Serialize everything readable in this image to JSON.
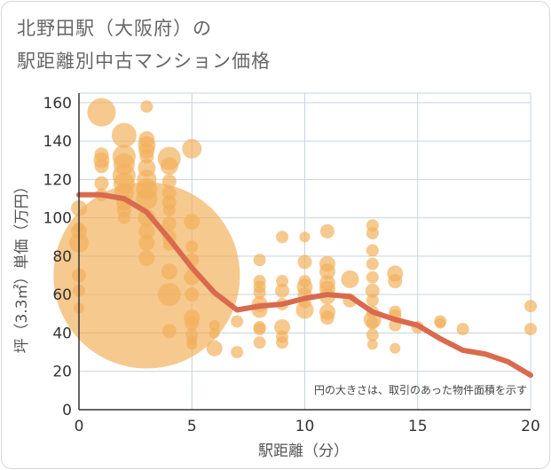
{
  "title_line1": "北野田駅（大阪府）の",
  "title_line2": "駅距離別中古マンション価格",
  "chart_data": {
    "type": "scatter",
    "xlabel": "駅距離（分）",
    "ylabel": "坪（3.3㎡）単価（万円）",
    "xlim": [
      0,
      20
    ],
    "ylim": [
      0,
      165
    ],
    "xticks": [
      0,
      5,
      10,
      15,
      20
    ],
    "yticks": [
      0,
      20,
      40,
      60,
      80,
      100,
      120,
      140,
      160
    ],
    "grid": true,
    "note": "円の大きさは、取引のあった物件面積を示す",
    "colors": {
      "bubble": "#f2b05a",
      "line": "#d96a4e",
      "grid": "#c8d4e0"
    },
    "bubbles": [
      {
        "x": 0,
        "y": 105,
        "r": 9
      },
      {
        "x": 0,
        "y": 93,
        "r": 9
      },
      {
        "x": 0,
        "y": 87,
        "r": 11
      },
      {
        "x": 0,
        "y": 70,
        "r": 8
      },
      {
        "x": 0,
        "y": 62,
        "r": 7
      },
      {
        "x": 0,
        "y": 53,
        "r": 6
      },
      {
        "x": 0,
        "y": 95,
        "r": 6
      },
      {
        "x": 1,
        "y": 155,
        "r": 16
      },
      {
        "x": 1,
        "y": 133,
        "r": 8
      },
      {
        "x": 1,
        "y": 130,
        "r": 9
      },
      {
        "x": 1,
        "y": 127,
        "r": 8
      },
      {
        "x": 1,
        "y": 118,
        "r": 8
      },
      {
        "x": 1,
        "y": 112,
        "r": 7
      },
      {
        "x": 2,
        "y": 143,
        "r": 14
      },
      {
        "x": 2,
        "y": 132,
        "r": 13
      },
      {
        "x": 2,
        "y": 128,
        "r": 12
      },
      {
        "x": 2,
        "y": 122,
        "r": 13
      },
      {
        "x": 2,
        "y": 118,
        "r": 12
      },
      {
        "x": 2,
        "y": 113,
        "r": 11
      },
      {
        "x": 2,
        "y": 108,
        "r": 9
      },
      {
        "x": 2,
        "y": 104,
        "r": 8
      },
      {
        "x": 2,
        "y": 100,
        "r": 7
      },
      {
        "x": 3,
        "y": 70,
        "r": 105
      },
      {
        "x": 3,
        "y": 158,
        "r": 7
      },
      {
        "x": 3,
        "y": 141,
        "r": 9
      },
      {
        "x": 3,
        "y": 138,
        "r": 10
      },
      {
        "x": 3,
        "y": 135,
        "r": 9
      },
      {
        "x": 3,
        "y": 132,
        "r": 8
      },
      {
        "x": 3,
        "y": 126,
        "r": 10
      },
      {
        "x": 3,
        "y": 120,
        "r": 11
      },
      {
        "x": 3,
        "y": 115,
        "r": 12
      },
      {
        "x": 3,
        "y": 110,
        "r": 12
      },
      {
        "x": 3,
        "y": 100,
        "r": 10
      },
      {
        "x": 3,
        "y": 93,
        "r": 9
      },
      {
        "x": 3,
        "y": 87,
        "r": 9
      },
      {
        "x": 3,
        "y": 79,
        "r": 9
      },
      {
        "x": 4,
        "y": 131,
        "r": 13
      },
      {
        "x": 4,
        "y": 127,
        "r": 10
      },
      {
        "x": 4,
        "y": 119,
        "r": 8
      },
      {
        "x": 4,
        "y": 113,
        "r": 8
      },
      {
        "x": 4,
        "y": 108,
        "r": 8
      },
      {
        "x": 4,
        "y": 104,
        "r": 7
      },
      {
        "x": 4,
        "y": 97,
        "r": 8
      },
      {
        "x": 4,
        "y": 90,
        "r": 8
      },
      {
        "x": 4,
        "y": 86,
        "r": 7
      },
      {
        "x": 4,
        "y": 72,
        "r": 9
      },
      {
        "x": 4,
        "y": 60,
        "r": 13
      },
      {
        "x": 4,
        "y": 41,
        "r": 8
      },
      {
        "x": 5,
        "y": 136,
        "r": 11
      },
      {
        "x": 5,
        "y": 98,
        "r": 9
      },
      {
        "x": 5,
        "y": 85,
        "r": 7
      },
      {
        "x": 5,
        "y": 78,
        "r": 8
      },
      {
        "x": 5,
        "y": 69,
        "r": 9
      },
      {
        "x": 5,
        "y": 60,
        "r": 8
      },
      {
        "x": 5,
        "y": 48,
        "r": 9
      },
      {
        "x": 5,
        "y": 45,
        "r": 8
      },
      {
        "x": 5,
        "y": 39,
        "r": 7
      },
      {
        "x": 5,
        "y": 36,
        "r": 6
      },
      {
        "x": 5,
        "y": 34,
        "r": 6
      },
      {
        "x": 6,
        "y": 44,
        "r": 6
      },
      {
        "x": 6,
        "y": 40,
        "r": 6
      },
      {
        "x": 6,
        "y": 32,
        "r": 9
      },
      {
        "x": 7,
        "y": 46,
        "r": 7
      },
      {
        "x": 7,
        "y": 30,
        "r": 7
      },
      {
        "x": 8,
        "y": 78,
        "r": 7
      },
      {
        "x": 8,
        "y": 67,
        "r": 7
      },
      {
        "x": 8,
        "y": 64,
        "r": 7
      },
      {
        "x": 8,
        "y": 61,
        "r": 7
      },
      {
        "x": 8,
        "y": 55,
        "r": 9
      },
      {
        "x": 8,
        "y": 52,
        "r": 9
      },
      {
        "x": 8,
        "y": 43,
        "r": 7
      },
      {
        "x": 8,
        "y": 42,
        "r": 7
      },
      {
        "x": 8,
        "y": 35,
        "r": 7
      },
      {
        "x": 9,
        "y": 90,
        "r": 7
      },
      {
        "x": 9,
        "y": 67,
        "r": 7
      },
      {
        "x": 9,
        "y": 62,
        "r": 8
      },
      {
        "x": 9,
        "y": 55,
        "r": 7
      },
      {
        "x": 9,
        "y": 43,
        "r": 9
      },
      {
        "x": 9,
        "y": 38,
        "r": 7
      },
      {
        "x": 9,
        "y": 35,
        "r": 7
      },
      {
        "x": 10,
        "y": 90,
        "r": 6
      },
      {
        "x": 10,
        "y": 77,
        "r": 8
      },
      {
        "x": 10,
        "y": 67,
        "r": 7
      },
      {
        "x": 10,
        "y": 64,
        "r": 9
      },
      {
        "x": 10,
        "y": 60,
        "r": 8
      },
      {
        "x": 10,
        "y": 56,
        "r": 7
      },
      {
        "x": 10,
        "y": 52,
        "r": 10
      },
      {
        "x": 11,
        "y": 93,
        "r": 8
      },
      {
        "x": 11,
        "y": 76,
        "r": 9
      },
      {
        "x": 11,
        "y": 72,
        "r": 9
      },
      {
        "x": 11,
        "y": 66,
        "r": 9
      },
      {
        "x": 11,
        "y": 63,
        "r": 9
      },
      {
        "x": 11,
        "y": 59,
        "r": 9
      },
      {
        "x": 11,
        "y": 51,
        "r": 9
      },
      {
        "x": 11,
        "y": 48,
        "r": 8
      },
      {
        "x": 12,
        "y": 68,
        "r": 10
      },
      {
        "x": 12,
        "y": 57,
        "r": 8
      },
      {
        "x": 13,
        "y": 96,
        "r": 7
      },
      {
        "x": 13,
        "y": 92,
        "r": 7
      },
      {
        "x": 13,
        "y": 83,
        "r": 7
      },
      {
        "x": 13,
        "y": 76,
        "r": 7
      },
      {
        "x": 13,
        "y": 69,
        "r": 7
      },
      {
        "x": 13,
        "y": 62,
        "r": 8
      },
      {
        "x": 13,
        "y": 57,
        "r": 7
      },
      {
        "x": 13,
        "y": 51,
        "r": 7
      },
      {
        "x": 13,
        "y": 47,
        "r": 10
      },
      {
        "x": 13,
        "y": 45,
        "r": 7
      },
      {
        "x": 13,
        "y": 39,
        "r": 7
      },
      {
        "x": 13,
        "y": 34,
        "r": 6
      },
      {
        "x": 14,
        "y": 71,
        "r": 9
      },
      {
        "x": 14,
        "y": 67,
        "r": 8
      },
      {
        "x": 14,
        "y": 51,
        "r": 7
      },
      {
        "x": 14,
        "y": 49,
        "r": 7
      },
      {
        "x": 14,
        "y": 44,
        "r": 7
      },
      {
        "x": 14,
        "y": 32,
        "r": 6
      },
      {
        "x": 15,
        "y": 43,
        "r": 7
      },
      {
        "x": 16,
        "y": 46,
        "r": 7
      },
      {
        "x": 16,
        "y": 45,
        "r": 6
      },
      {
        "x": 17,
        "y": 42,
        "r": 7
      },
      {
        "x": 20,
        "y": 54,
        "r": 7
      },
      {
        "x": 20,
        "y": 42,
        "r": 7
      }
    ],
    "trend": {
      "x": [
        0,
        1,
        2,
        3,
        4,
        5,
        6,
        7,
        8,
        9,
        10,
        11,
        12,
        13,
        14,
        15,
        16,
        17,
        18,
        19,
        20
      ],
      "y": [
        112,
        112,
        110,
        103,
        89,
        74,
        61,
        52,
        54,
        55,
        58,
        60,
        59,
        51,
        47,
        44,
        37,
        31,
        29,
        25,
        18
      ]
    }
  }
}
